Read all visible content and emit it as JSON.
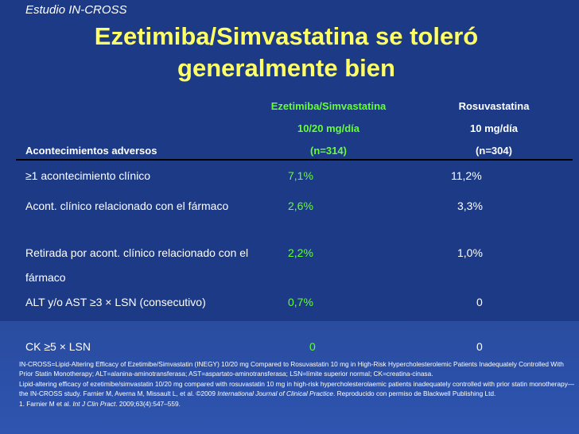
{
  "study_label": "Estudio IN-CROSS",
  "title": {
    "line1": "Ezetimiba/Simvastatina se toleró",
    "line2": "generalmente bien"
  },
  "table": {
    "row_header": "Acontecimientos adversos",
    "columns": [
      {
        "name": "Ezetimiba/Simvastatina",
        "dose": "10/20 mg/día",
        "n": "(n=314)",
        "color": "#66ff33"
      },
      {
        "name": "Rosuvastatina",
        "dose": "10 mg/día",
        "n": "(n=304)",
        "color": "#ffffff"
      }
    ],
    "rows": [
      {
        "label": "≥1 acontecimiento clínico",
        "ezet": "7,1%",
        "rosu": "11,2%"
      },
      {
        "label": "Acont. clínico relacionado con el fármaco",
        "ezet": "2,6%",
        "rosu": "3,3%"
      },
      {
        "label": "Retirada por acont. clínico relacionado con el fármaco",
        "ezet": "2,2%",
        "rosu": "1,0%"
      },
      {
        "label": "ALT y/o AST ≥3 × LSN (consecutivo)",
        "ezet": "0,7%",
        "rosu": "0"
      },
      {
        "label": "CK ≥5 × LSN",
        "ezet": "0",
        "rosu": "0"
      }
    ]
  },
  "footnotes": {
    "abbreviations": "IN-CROSS=Lipid-Altering Efficacy of Ezetimibe/Simvastatin (INEGY) 10/20 mg Compared to Rosuvastatin 10 mg in High-Risk Hypercholesterolemic Patients Inadequately Controlled With Prior Statin Monotherapy; ALT=alanina-aminotransferasa; AST=aspartato-aminotransferasa; LSN=límite superior normal; CK=creatina-cinasa.",
    "copyright_pre": "Lipid-altering efficacy of ezetimibe/simvastatin 10/20 mg compared with rosuvastatin 10 mg in high-risk hypercholesterolaemic patients inadequately controlled with prior statin monotherapy—the IN-CROSS study. Farnier M, Averna M, Missault L, et al. ©2009 ",
    "copyright_journal": "International Journal of Clinical Practice",
    "copyright_post": ". Reproducido con permiso de Blackwell Publishing Ltd.",
    "reference_pre": "1. Farnier M et al. ",
    "reference_journal": "Int J Clin Pract",
    "reference_post": ". 2009;63(4):547–559."
  },
  "colors": {
    "background": "#1c3a86",
    "title": "#ffff66",
    "ezetimibe_values": "#66ff33",
    "text": "#ffffff"
  }
}
